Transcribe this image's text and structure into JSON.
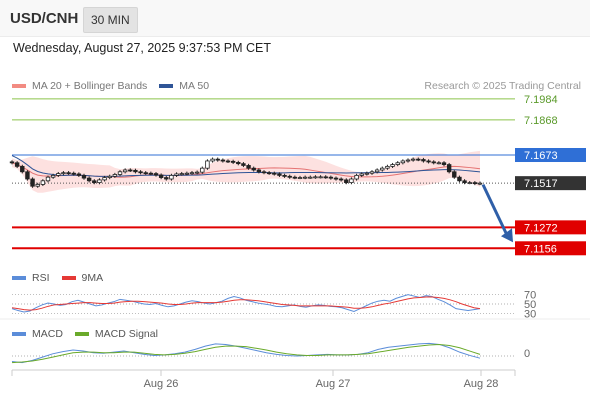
{
  "header": {
    "symbol": "USD/CNH",
    "timeframe": "30 MIN",
    "datetime": "Wednesday, August 27, 2025 9:37:53 PM CET",
    "copyright": "Research © 2025 Trading Central"
  },
  "legend": {
    "ma20_label": "MA 20 + Bollinger Bands",
    "ma50_label": "MA 50",
    "ma20_color": "#f28b82",
    "ma50_color": "#2f5597"
  },
  "rsi_legend": {
    "rsi_label": "RSI",
    "ma_label": "9MA",
    "rsi_color": "#5b8dd9",
    "ma_color": "#e53935"
  },
  "macd_legend": {
    "macd_label": "MACD",
    "signal_label": "MACD Signal",
    "macd_color": "#5b8dd9",
    "signal_color": "#6aaa2a"
  },
  "chart_data": {
    "type": "candlestick",
    "x_tick_labels": [
      "Aug 26",
      "Aug 27",
      "Aug 28"
    ],
    "y_range": [
      7.108,
      7.2
    ],
    "levels": [
      {
        "label": "7.1984",
        "value": 7.1984,
        "kind": "resistance2"
      },
      {
        "label": "7.1868",
        "value": 7.1868,
        "kind": "resistance1"
      },
      {
        "label": "7.1673",
        "value": 7.1673,
        "kind": "pivot"
      },
      {
        "label": "7.1517",
        "value": 7.1517,
        "kind": "last"
      },
      {
        "label": "7.1272",
        "value": 7.1272,
        "kind": "support1"
      },
      {
        "label": "7.1156",
        "value": 7.1156,
        "kind": "support2"
      }
    ],
    "close_series": [
      7.163,
      7.161,
      7.158,
      7.154,
      7.15,
      7.151,
      7.153,
      7.155,
      7.156,
      7.157,
      7.1575,
      7.1572,
      7.1568,
      7.156,
      7.1545,
      7.153,
      7.152,
      7.1535,
      7.1548,
      7.1555,
      7.1565,
      7.158,
      7.159,
      7.1588,
      7.158,
      7.1575,
      7.1572,
      7.157,
      7.1562,
      7.1548,
      7.154,
      7.156,
      7.1568,
      7.157,
      7.1572,
      7.1575,
      7.1578,
      7.16,
      7.164,
      7.165,
      7.1645,
      7.164,
      7.1638,
      7.1632,
      7.1625,
      7.1615,
      7.16,
      7.159,
      7.158,
      7.1575,
      7.1572,
      7.1568,
      7.156,
      7.1555,
      7.155,
      7.1548,
      7.1548,
      7.155,
      7.155,
      7.1552,
      7.1552,
      7.155,
      7.1545,
      7.154,
      7.1535,
      7.152,
      7.154,
      7.156,
      7.1568,
      7.1572,
      7.158,
      7.159,
      7.16,
      7.161,
      7.162,
      7.163,
      7.164,
      7.1645,
      7.165,
      7.1648,
      7.164,
      7.1635,
      7.163,
      7.163,
      7.162,
      7.158,
      7.155,
      7.153,
      7.152,
      7.152,
      7.1515,
      7.1517
    ],
    "forecast_arrow": {
      "from": 7.152,
      "to": 7.1156
    },
    "rsi": {
      "levels": [
        70,
        50,
        30
      ],
      "rsi_values": [
        40,
        36,
        33,
        35,
        42,
        48,
        52,
        50,
        47,
        49,
        55,
        58,
        54,
        50,
        46,
        48,
        52,
        55,
        60,
        58,
        56,
        53,
        50,
        49,
        51,
        47,
        44,
        46,
        50,
        54,
        57,
        55,
        52,
        50,
        53,
        56,
        62,
        66,
        63,
        58,
        55,
        52,
        50,
        48,
        45,
        44,
        46,
        48,
        45,
        43,
        46,
        48,
        47,
        45,
        44,
        42,
        38,
        34,
        40,
        46,
        52,
        56,
        58,
        56,
        62,
        66,
        70,
        67,
        64,
        68,
        66,
        60,
        55,
        48,
        40,
        38,
        36,
        38,
        40
      ],
      "ma_values": [
        42,
        40,
        38,
        37,
        38,
        41,
        45,
        48,
        49,
        50,
        51,
        52,
        53,
        53,
        52,
        51,
        51,
        52,
        54,
        55,
        56,
        56,
        55,
        54,
        53,
        52,
        50,
        49,
        49,
        50,
        52,
        53,
        53,
        53,
        53,
        54,
        56,
        58,
        59,
        59,
        58,
        57,
        55,
        53,
        51,
        49,
        48,
        47,
        46,
        46,
        46,
        46,
        46,
        46,
        45,
        44,
        43,
        41,
        41,
        42,
        44,
        47,
        50,
        52,
        55,
        58,
        61,
        63,
        64,
        65,
        65,
        64,
        62,
        59,
        55,
        50,
        46,
        42,
        40
      ]
    },
    "macd": {
      "zero_label": "0",
      "macd_values": [
        -0.001,
        -0.0012,
        -0.0008,
        -0.0002,
        0.0004,
        0.0008,
        0.0011,
        0.0009,
        0.0006,
        0.0005,
        0.0007,
        0.0009,
        0.0006,
        0.0003,
        0.0001,
        0.0002,
        0.0004,
        0.0007,
        0.0012,
        0.0018,
        0.0022,
        0.0021,
        0.0018,
        0.0014,
        0.001,
        0.0006,
        0.0003,
        0.0001,
        0.0,
        0.0001,
        0.0002,
        0.0003,
        0.0002,
        0.0002,
        0.0003,
        0.0006,
        0.0012,
        0.0016,
        0.0018,
        0.002,
        0.0022,
        0.0023,
        0.0021,
        0.0015,
        0.0007,
        0.0001,
        -0.0004
      ],
      "signal_values": [
        -0.0012,
        -0.0011,
        -0.0009,
        -0.0006,
        -0.0002,
        0.0002,
        0.0006,
        0.0007,
        0.0007,
        0.0006,
        0.0006,
        0.0007,
        0.0007,
        0.0005,
        0.0003,
        0.0002,
        0.0003,
        0.0005,
        0.0008,
        0.0012,
        0.0016,
        0.0018,
        0.0018,
        0.0017,
        0.0014,
        0.0011,
        0.0007,
        0.0004,
        0.0002,
        0.0001,
        0.0001,
        0.0002,
        0.0002,
        0.0002,
        0.0003,
        0.0004,
        0.0007,
        0.001,
        0.0013,
        0.0016,
        0.0018,
        0.002,
        0.0021,
        0.0019,
        0.0015,
        0.0009,
        0.0003
      ]
    }
  }
}
